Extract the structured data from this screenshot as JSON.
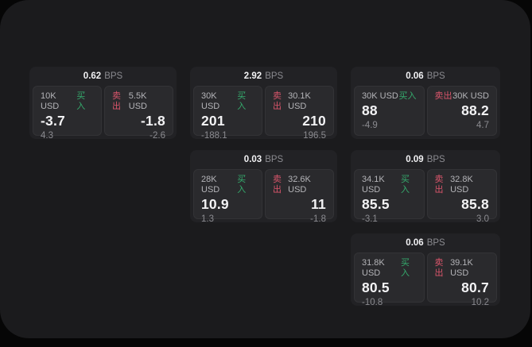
{
  "window": {
    "background": "#060606",
    "surface": "#1b1b1d"
  },
  "colors": {
    "surface": "#1b1b1d",
    "card_bg": "#222225",
    "panel_bg": "#2a2a2d",
    "buy_green": "#35ab6d",
    "sell_red": "#d9556b",
    "text_primary": "#f2f2f4",
    "text_secondary": "#b4b4b8",
    "text_muted": "#8b8b90"
  },
  "labels": {
    "bps_unit": "BPS",
    "buy": "买入",
    "sell": "卖出"
  },
  "cards": [
    {
      "bps": "0.62",
      "buy": {
        "volume": "10K USD",
        "price": "-3.7",
        "change": "4.3"
      },
      "sell": {
        "volume": "5.5K USD",
        "price": "-1.8",
        "change": "-2.6"
      }
    },
    {
      "bps": "2.92",
      "buy": {
        "volume": "30K USD",
        "price": "201",
        "change": "-188.1"
      },
      "sell": {
        "volume": "30.1K USD",
        "price": "210",
        "change": "196.5"
      }
    },
    {
      "bps": "0.06",
      "buy": {
        "volume": "30K USD",
        "price": "88",
        "change": "-4.9"
      },
      "sell": {
        "volume": "30K USD",
        "price": "88.2",
        "change": "4.7"
      }
    },
    {
      "bps": "0.03",
      "buy": {
        "volume": "28K USD",
        "price": "10.9",
        "change": "1.3"
      },
      "sell": {
        "volume": "32.6K USD",
        "price": "11",
        "change": "-1.8"
      }
    },
    {
      "bps": "0.09",
      "buy": {
        "volume": "34.1K USD",
        "price": "85.5",
        "change": "-3.1"
      },
      "sell": {
        "volume": "32.8K USD",
        "price": "85.8",
        "change": "3.0"
      }
    },
    {
      "bps": "0.06",
      "buy": {
        "volume": "31.8K USD",
        "price": "80.5",
        "change": "-10.8"
      },
      "sell": {
        "volume": "39.1K USD",
        "price": "80.7",
        "change": "10.2"
      }
    }
  ]
}
